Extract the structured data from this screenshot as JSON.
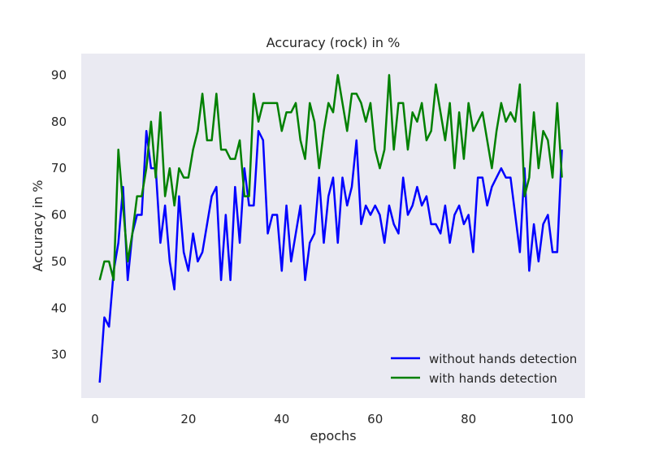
{
  "chart_data": {
    "type": "line",
    "title": "Accuracy (rock)  in %",
    "xlabel": "epochs",
    "ylabel": "Accuracy in %",
    "xlim": [
      -2.95,
      104.95
    ],
    "ylim": [
      20.7,
      94.6
    ],
    "xticks": [
      0,
      20,
      40,
      60,
      80,
      100
    ],
    "yticks": [
      30,
      40,
      50,
      60,
      70,
      80,
      90
    ],
    "grid": false,
    "legend_position": "lower-right",
    "background": "#eaeaf2",
    "x": [
      1,
      2,
      3,
      4,
      5,
      6,
      7,
      8,
      9,
      10,
      11,
      12,
      13,
      14,
      15,
      16,
      17,
      18,
      19,
      20,
      21,
      22,
      23,
      24,
      25,
      26,
      27,
      28,
      29,
      30,
      31,
      32,
      33,
      34,
      35,
      36,
      37,
      38,
      39,
      40,
      41,
      42,
      43,
      44,
      45,
      46,
      47,
      48,
      49,
      50,
      51,
      52,
      53,
      54,
      55,
      56,
      57,
      58,
      59,
      60,
      61,
      62,
      63,
      64,
      65,
      66,
      67,
      68,
      69,
      70,
      71,
      72,
      73,
      74,
      75,
      76,
      77,
      78,
      79,
      80,
      81,
      82,
      83,
      84,
      85,
      86,
      87,
      88,
      89,
      90,
      91,
      92,
      93,
      94,
      95,
      96,
      97,
      98,
      99,
      100
    ],
    "series": [
      {
        "name": "without hands detection",
        "color": "#0000ff",
        "values": [
          24,
          38,
          36,
          48,
          54,
          66,
          46,
          56,
          60,
          60,
          78,
          70,
          70,
          54,
          62,
          50,
          44,
          64,
          52,
          48,
          56,
          50,
          52,
          58,
          64,
          66,
          46,
          60,
          46,
          66,
          54,
          70,
          62,
          62,
          78,
          76,
          56,
          60,
          60,
          48,
          62,
          50,
          56,
          62,
          46,
          54,
          56,
          68,
          54,
          64,
          68,
          54,
          68,
          62,
          66,
          76,
          58,
          62,
          60,
          62,
          60,
          54,
          62,
          58,
          56,
          68,
          60,
          62,
          66,
          62,
          64,
          58,
          58,
          56,
          62,
          54,
          60,
          62,
          58,
          60,
          52,
          68,
          68,
          62,
          66,
          68,
          70,
          68,
          68,
          60,
          52,
          70,
          48,
          58,
          50,
          58,
          60,
          52,
          52,
          74
        ]
      },
      {
        "name": "with hands detection",
        "color": "#008000",
        "values": [
          46,
          50,
          50,
          46,
          74,
          62,
          50,
          56,
          64,
          64,
          70,
          80,
          68,
          82,
          64,
          70,
          62,
          70,
          68,
          68,
          74,
          78,
          86,
          76,
          76,
          86,
          74,
          74,
          72,
          72,
          76,
          64,
          64,
          86,
          80,
          84,
          84,
          84,
          84,
          78,
          82,
          82,
          84,
          76,
          72,
          84,
          80,
          70,
          78,
          84,
          82,
          90,
          84,
          78,
          86,
          86,
          84,
          80,
          84,
          74,
          70,
          74,
          90,
          74,
          84,
          84,
          74,
          82,
          80,
          84,
          76,
          78,
          88,
          82,
          76,
          84,
          70,
          82,
          72,
          84,
          78,
          80,
          82,
          76,
          70,
          78,
          84,
          80,
          82,
          80,
          88,
          64,
          68,
          82,
          70,
          78,
          76,
          68,
          84,
          68
        ]
      }
    ]
  }
}
